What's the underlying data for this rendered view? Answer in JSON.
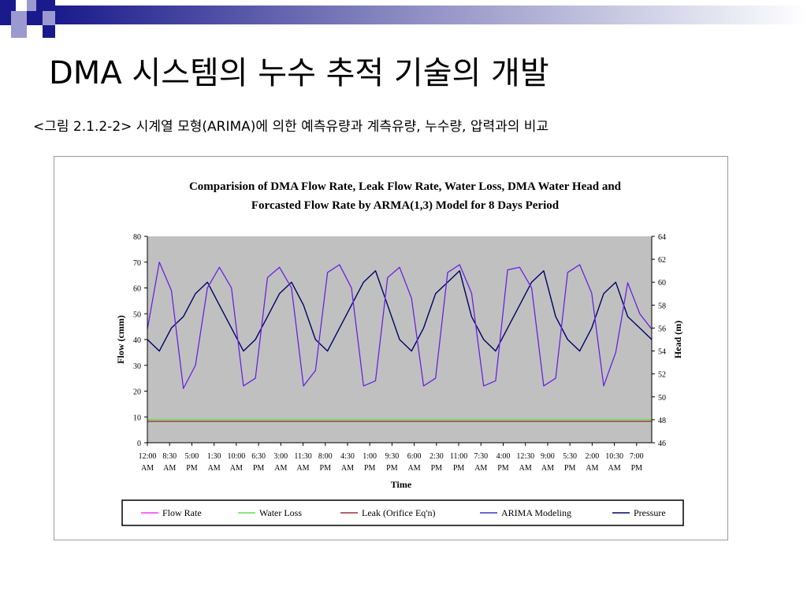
{
  "slide": {
    "title": "DMA 시스템의 누수 추적 기술의 개발",
    "caption": "<그림 2.1.2-2> 시계열 모형(ARIMA)에 의한 예측유량과 계측유량, 누수량, 압력과의 비교"
  },
  "chart_data": {
    "type": "line",
    "title": "Comparision of DMA Flow Rate,  Leak Flow Rate, Water Loss, DMA Water Head and",
    "subtitle": "Forcasted Flow Rate by ARMA(1,3) Model for 8 Days Period",
    "xlabel": "Time",
    "ylabel": "Flow (cmm)",
    "y2label": "Head (m)",
    "ylim": [
      0,
      80
    ],
    "y2lim": [
      46,
      64
    ],
    "yticks": [
      "0",
      "10",
      "20",
      "30",
      "40",
      "50",
      "60",
      "70",
      "80"
    ],
    "y2ticks": [
      "46",
      "48",
      "50",
      "52",
      "54",
      "56",
      "58",
      "60",
      "62",
      "64"
    ],
    "xticks": [
      {
        "time": "12:00",
        "period": "AM"
      },
      {
        "time": "8:30",
        "period": "AM"
      },
      {
        "time": "5:00",
        "period": "PM"
      },
      {
        "time": "1:30",
        "period": "AM"
      },
      {
        "time": "10:00",
        "period": "AM"
      },
      {
        "time": "6:30",
        "period": "PM"
      },
      {
        "time": "3:00",
        "period": "AM"
      },
      {
        "time": "11:30",
        "period": "AM"
      },
      {
        "time": "8:00",
        "period": "PM"
      },
      {
        "time": "4:30",
        "period": "AM"
      },
      {
        "time": "1:00",
        "period": "PM"
      },
      {
        "time": "9:30",
        "period": "PM"
      },
      {
        "time": "6:00",
        "period": "AM"
      },
      {
        "time": "2:30",
        "period": "PM"
      },
      {
        "time": "11:00",
        "period": "PM"
      },
      {
        "time": "7:30",
        "period": "AM"
      },
      {
        "time": "4:00",
        "period": "PM"
      },
      {
        "time": "12:30",
        "period": "AM"
      },
      {
        "time": "9:00",
        "period": "AM"
      },
      {
        "time": "5:30",
        "period": "PM"
      },
      {
        "time": "2:00",
        "period": "AM"
      },
      {
        "time": "10:30",
        "period": "AM"
      },
      {
        "time": "7:00",
        "period": "PM"
      }
    ],
    "grid": false,
    "plot_background": "#c0c0c0",
    "legend_position": "bottom",
    "series": [
      {
        "name": "Flow Rate",
        "color": "#ff33ff",
        "axis": "left",
        "values": [
          44,
          70,
          59,
          21,
          30,
          60,
          68,
          60,
          22,
          25,
          64,
          68,
          60,
          22,
          28,
          66,
          69,
          60,
          22,
          24,
          64,
          68,
          56,
          22,
          25,
          66,
          69,
          58,
          22,
          24,
          67,
          68,
          60,
          22,
          25,
          66,
          69,
          58,
          22,
          35,
          62,
          50,
          44
        ]
      },
      {
        "name": "Water Loss",
        "color": "#66dd55",
        "axis": "left",
        "values": [
          9,
          9
        ]
      },
      {
        "name": "Leak (Orifice Eq'n)",
        "color": "#993333",
        "axis": "left",
        "values": [
          8.3,
          8.3
        ]
      },
      {
        "name": "ARIMA Modeling",
        "color": "#3333cc",
        "axis": "left",
        "values": [
          44,
          70,
          59,
          21,
          30,
          60,
          68,
          60,
          22,
          25,
          64,
          68,
          60,
          22,
          28,
          66,
          69,
          60,
          22,
          24,
          64,
          68,
          56,
          22,
          25,
          66,
          69,
          58,
          22,
          24,
          67,
          68,
          60,
          22,
          25,
          66,
          69,
          58,
          22,
          35,
          62,
          50,
          44
        ]
      },
      {
        "name": "Pressure",
        "color": "#000066",
        "axis": "right",
        "values": [
          55,
          54,
          56,
          57,
          59,
          60,
          58,
          56,
          54,
          55,
          57,
          59,
          60,
          58,
          55,
          54,
          56,
          58,
          60,
          61,
          58,
          55,
          54,
          56,
          59,
          60,
          61,
          57,
          55,
          54,
          56,
          58,
          60,
          61,
          57,
          55,
          54,
          56,
          59,
          60,
          57,
          56,
          55
        ]
      }
    ]
  }
}
